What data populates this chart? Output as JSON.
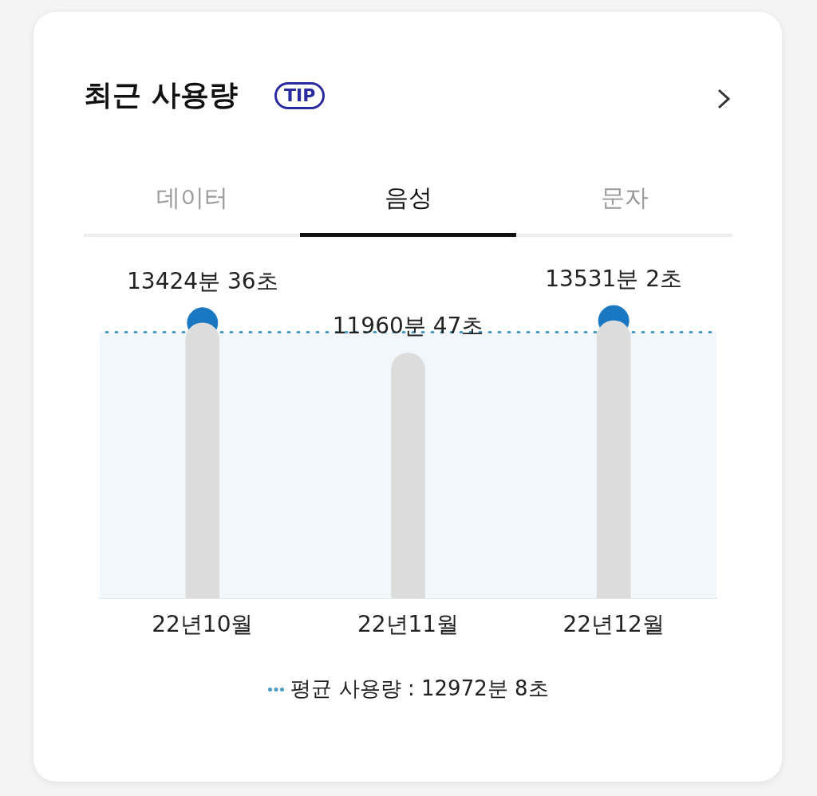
{
  "chart_data": {
    "type": "bar",
    "title": "최근 사용량",
    "annotations": [
      "TIP",
      "데이터",
      "음성",
      "문자"
    ],
    "categories": [
      "22년10월",
      "22년11월",
      "22년12월"
    ],
    "series": [
      {
        "color": "#dcdcdc",
        "values": [
          13424,
          11960,
          13531
        ],
        "value_labels": [
          null,
          "11960분 47초",
          null
        ]
      },
      {
        "type": "scatter",
        "color": "#1a78c2",
        "values": [
          13424,
          null,
          13531
        ],
        "value_labels": [
          "13424분 36초",
          null,
          "13531분 2초"
        ]
      }
    ],
    "ref_lines": [
      {
        "axis": "y",
        "value": 12972,
        "label": "평균 사용량 : 12972분 8초",
        "color": "#4a9ac4",
        "line_style": "dotted"
      }
    ],
    "bands": [
      {
        "axis": "y",
        "from": 0,
        "to": 12972,
        "color": "#f1f7fa"
      }
    ],
    "marker": "circle",
    "grid": false,
    "legend": "bottom",
    "tick_labels": "x"
  }
}
